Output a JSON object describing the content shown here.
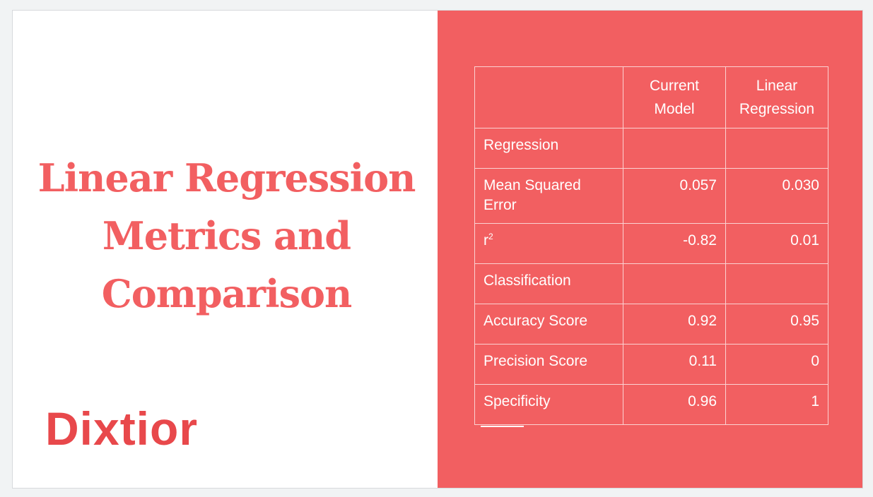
{
  "slide": {
    "title": "Linear Regression\nMetrics and\nComparison",
    "logo_text": "Dixtior",
    "colors": {
      "accent": "#f25f61",
      "logo": "#e8484b",
      "background": "#ffffff",
      "text_on_accent": "#ffffff"
    }
  },
  "table": {
    "headers": [
      "",
      "Current Model",
      "Linear Regression"
    ],
    "header_a_line1": "Current",
    "header_a_line2": "Model",
    "header_b_line1": "Linear",
    "header_b_line2": "Regression",
    "rows": [
      {
        "label": "Regression",
        "a": "",
        "b": ""
      },
      {
        "label": "Mean Squared Error",
        "a": "0.057",
        "b": "0.030"
      },
      {
        "label": "r",
        "label_sup": "2",
        "a": "-0.82",
        "b": "0.01"
      },
      {
        "label": "Classification",
        "a": "",
        "b": ""
      },
      {
        "label": "Accuracy Score",
        "a": "0.92",
        "b": "0.95"
      },
      {
        "label": "Precision Score",
        "a": "0.11",
        "b": "0"
      },
      {
        "label": "Specificity",
        "a": "0.96",
        "b": "1"
      }
    ]
  }
}
